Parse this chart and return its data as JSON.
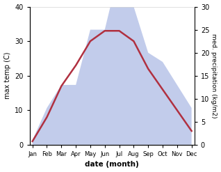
{
  "months": [
    "Jan",
    "Feb",
    "Mar",
    "Apr",
    "May",
    "Jun",
    "Jul",
    "Aug",
    "Sep",
    "Oct",
    "Nov",
    "Dec"
  ],
  "max_temp": [
    1,
    8,
    17,
    23,
    30,
    33,
    33,
    30,
    22,
    16,
    10,
    4
  ],
  "precipitation": [
    1,
    8,
    13,
    13,
    25,
    25,
    38,
    30,
    20,
    18,
    13,
    8
  ],
  "temp_color": "#b03040",
  "precip_fill_color": "#b8c4e8",
  "temp_ylim": [
    0,
    40
  ],
  "precip_ylim": [
    0,
    30
  ],
  "temp_yticks": [
    0,
    10,
    20,
    30,
    40
  ],
  "precip_yticks": [
    0,
    5,
    10,
    15,
    20,
    25,
    30
  ],
  "xlabel": "date (month)",
  "ylabel_left": "max temp (C)",
  "ylabel_right": "med. precipitation (kg/m2)",
  "background_color": "#ffffff"
}
